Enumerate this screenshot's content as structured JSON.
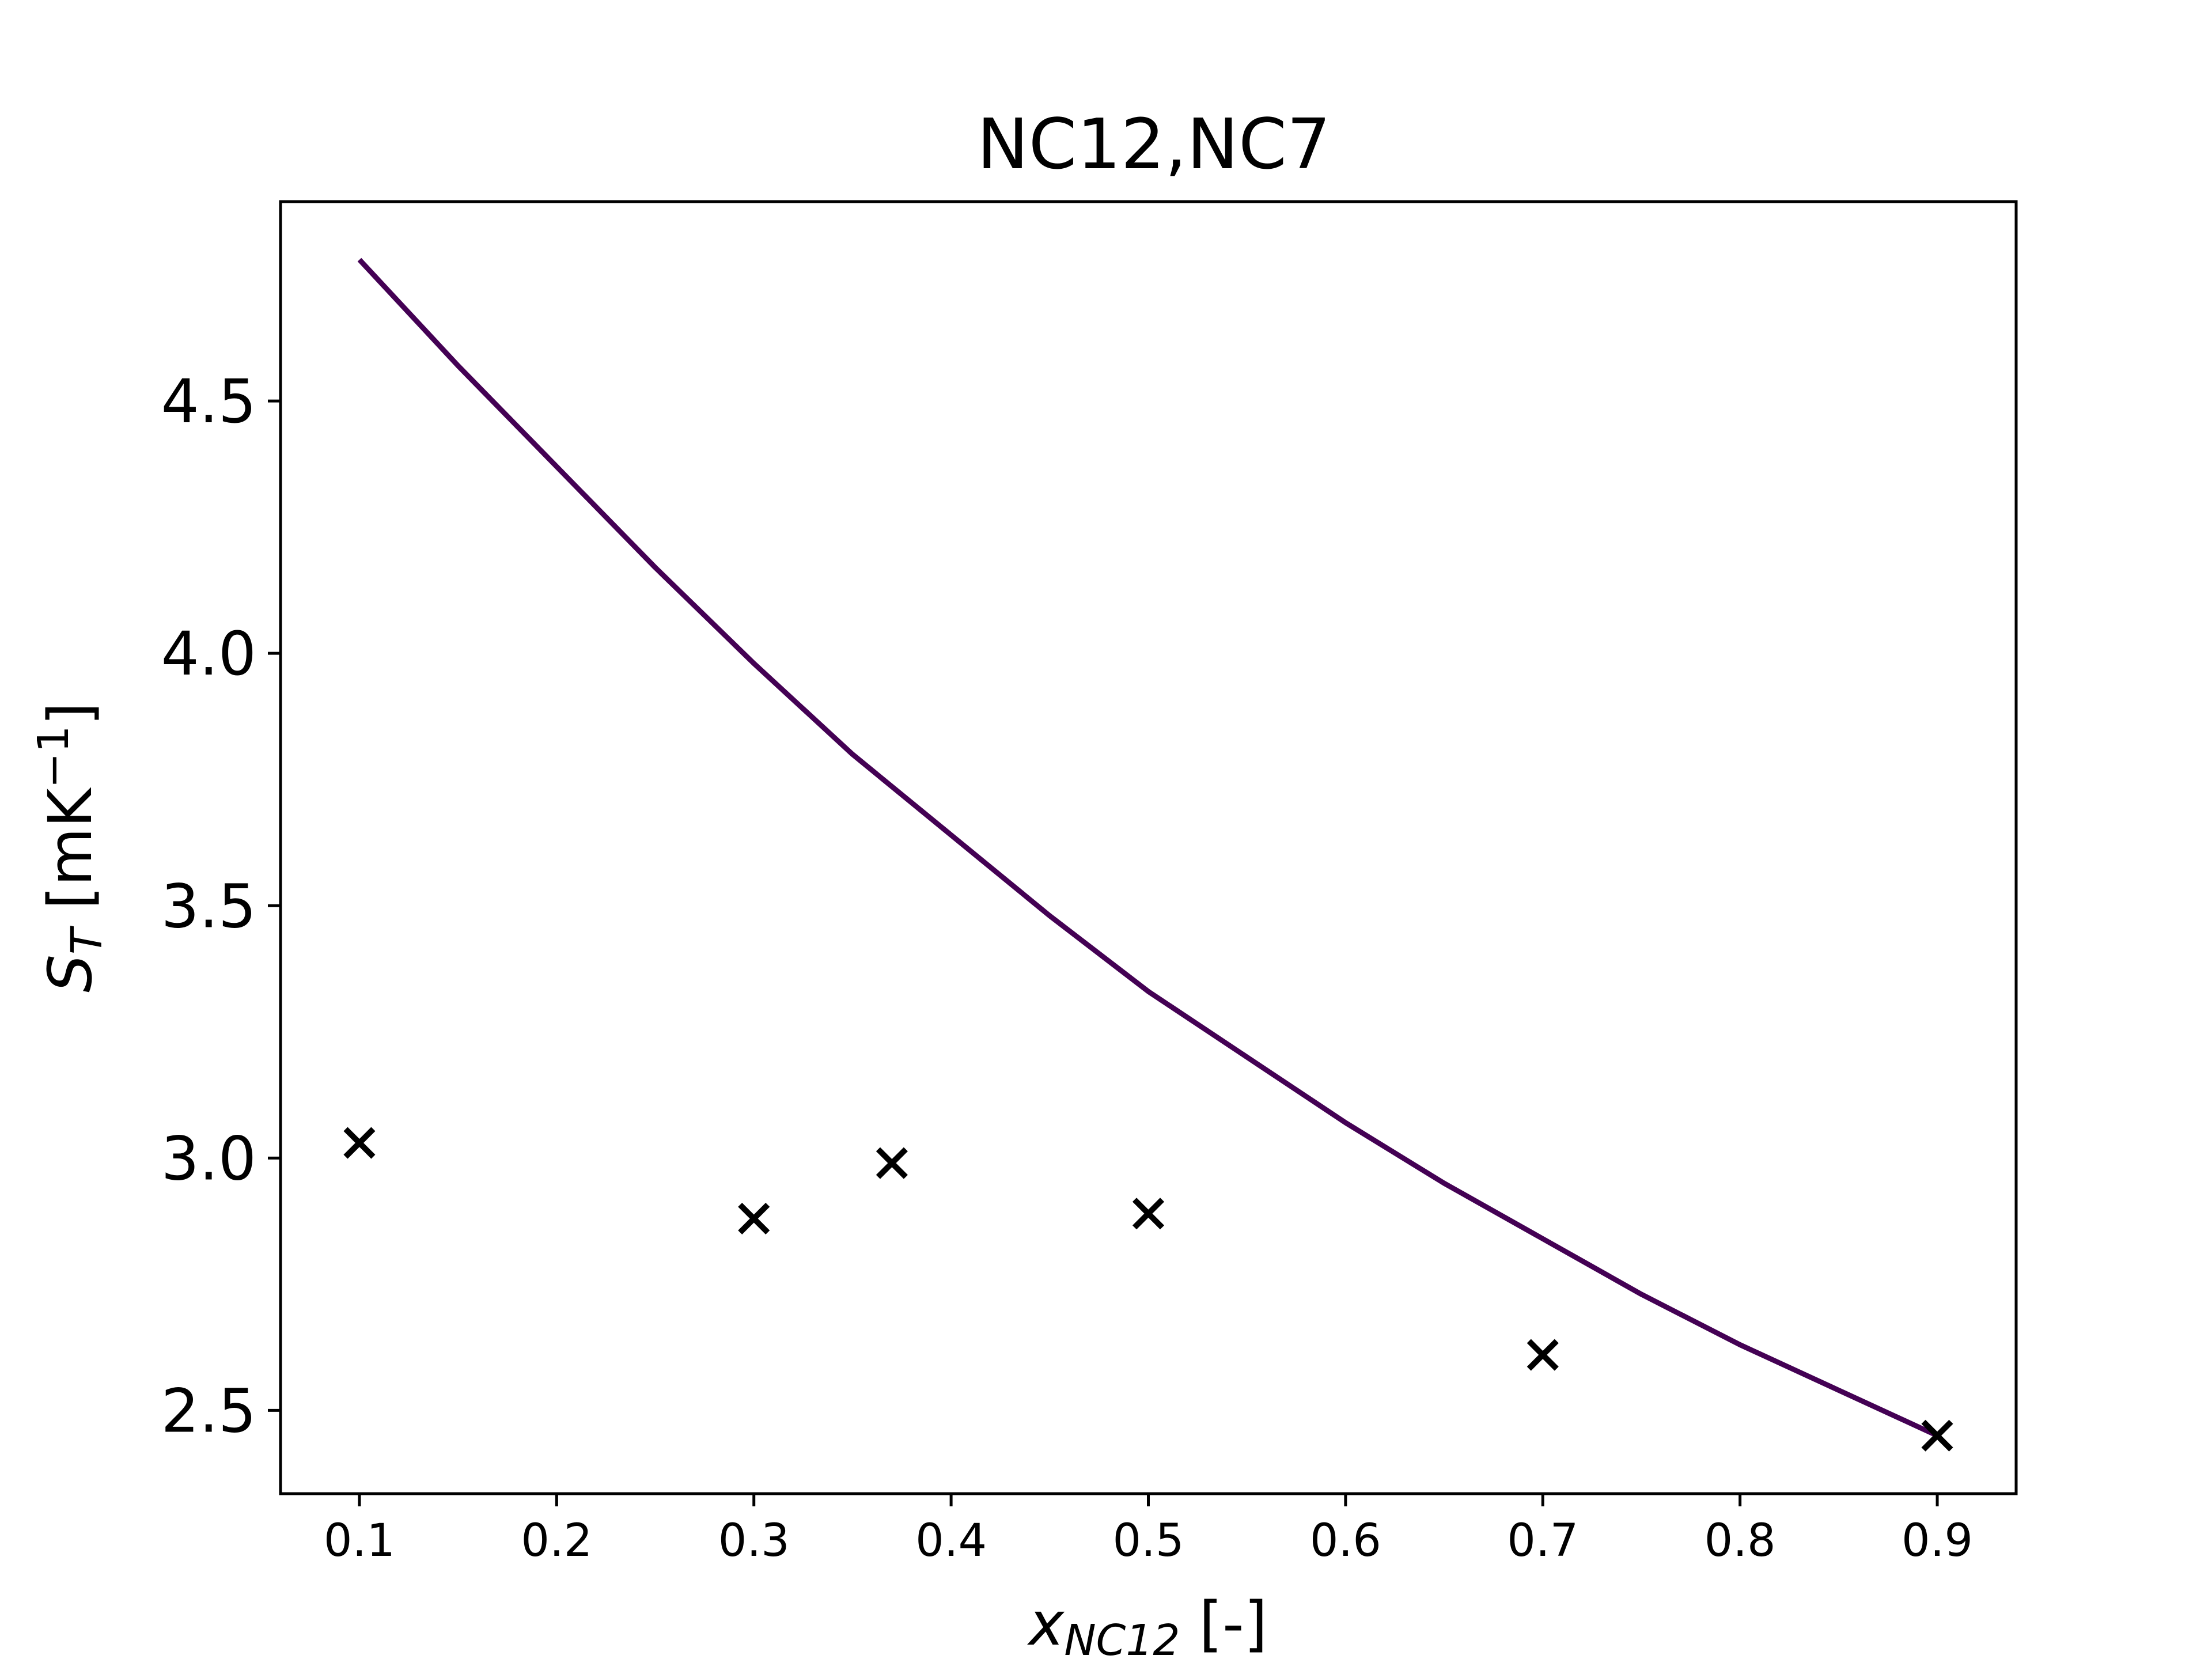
{
  "chart_data": {
    "type": "line",
    "title": "NC12,NC7",
    "xlabel": {
      "base": "x",
      "subscript": "NC12",
      "suffix": " [-]"
    },
    "ylabel": {
      "base": "S",
      "subscript": "T",
      "suffix_pre": " [mK",
      "superscript": "−1",
      "suffix_post": "]"
    },
    "xlim": [
      0.06,
      0.94
    ],
    "ylim": [
      2.335,
      4.895
    ],
    "xticks": [
      0.1,
      0.2,
      0.3,
      0.4,
      0.5,
      0.6,
      0.7,
      0.8,
      0.9
    ],
    "yticks": [
      2.5,
      3.0,
      3.5,
      4.0,
      4.5
    ],
    "grid": false,
    "legend": "none",
    "series": [
      {
        "type": "line",
        "color": "#440154",
        "x": [
          0.1,
          0.15,
          0.2,
          0.25,
          0.3,
          0.35,
          0.4,
          0.45,
          0.5,
          0.55,
          0.6,
          0.65,
          0.7,
          0.75,
          0.8,
          0.85,
          0.9
        ],
        "y": [
          4.78,
          4.57,
          4.37,
          4.17,
          3.98,
          3.8,
          3.64,
          3.48,
          3.33,
          3.2,
          3.07,
          2.95,
          2.84,
          2.73,
          2.63,
          2.54,
          2.45
        ]
      },
      {
        "type": "scatter",
        "marker": "x",
        "color": "#000000",
        "x": [
          0.1,
          0.3,
          0.37,
          0.5,
          0.7,
          0.9
        ],
        "y": [
          3.03,
          2.88,
          2.99,
          2.89,
          2.61,
          2.45
        ]
      }
    ]
  }
}
